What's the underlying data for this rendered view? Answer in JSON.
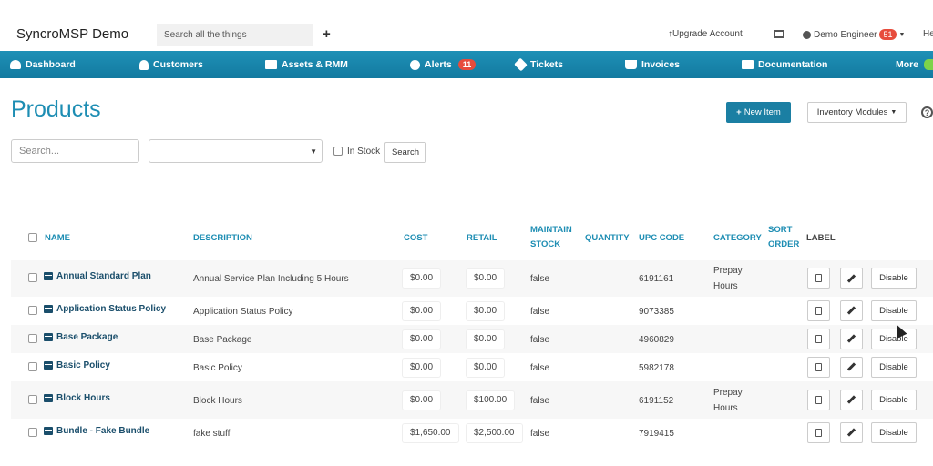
{
  "app": {
    "brand": "SyncroMSP Demo",
    "search_placeholder": "Search all the things",
    "plus": "+",
    "upgrade": "Upgrade Account",
    "user_name": "Demo Engineer",
    "user_badge": "51",
    "help_cut": "He"
  },
  "nav": [
    {
      "label": "Dashboard",
      "icon": "gauge-icon"
    },
    {
      "label": "Customers",
      "icon": "user-icon"
    },
    {
      "label": "Assets & RMM",
      "icon": "monitor-icon"
    },
    {
      "label": "Alerts",
      "icon": "alert-icon",
      "badge": "11"
    },
    {
      "label": "Tickets",
      "icon": "tag-icon"
    },
    {
      "label": "Invoices",
      "icon": "cart-icon"
    },
    {
      "label": "Documentation",
      "icon": "book-icon"
    },
    {
      "label": "More",
      "icon": "bell-icon"
    }
  ],
  "header": {
    "title": "Products",
    "new_item": "New Item",
    "inventory_modules": "Inventory Modules"
  },
  "filters": {
    "search_placeholder": "Search...",
    "in_stock_label": "In Stock",
    "search_button": "Search"
  },
  "table": {
    "columns": {
      "name": "NAME",
      "description": "DESCRIPTION",
      "cost": "COST",
      "retail": "RETAIL",
      "maintain_1": "MAINTAIN",
      "maintain_2": "STOCK",
      "quantity": "QUANTITY",
      "upc": "UPC CODE",
      "category": "CATEGORY",
      "sort_1": "SORT",
      "sort_2": "ORDER",
      "label": "LABEL"
    },
    "disable_label": "Disable",
    "rows": [
      {
        "name": "Annual Standard Plan",
        "description": "Annual Service Plan Including 5 Hours",
        "cost": "$0.00",
        "retail": "$0.00",
        "maintain_stock": "false",
        "upc": "6191161",
        "category_1": "Prepay",
        "category_2": "Hours"
      },
      {
        "name": "Application Status Policy",
        "description": "Application Status Policy",
        "cost": "$0.00",
        "retail": "$0.00",
        "maintain_stock": "false",
        "upc": "9073385",
        "category_1": "",
        "category_2": ""
      },
      {
        "name": "Base Package",
        "description": "Base Package",
        "cost": "$0.00",
        "retail": "$0.00",
        "maintain_stock": "false",
        "upc": "4960829",
        "category_1": "",
        "category_2": ""
      },
      {
        "name": "Basic Policy",
        "description": "Basic Policy",
        "cost": "$0.00",
        "retail": "$0.00",
        "maintain_stock": "false",
        "upc": "5982178",
        "category_1": "",
        "category_2": ""
      },
      {
        "name": "Block Hours",
        "description": "Block Hours",
        "cost": "$0.00",
        "retail": "$100.00",
        "maintain_stock": "false",
        "upc": "6191152",
        "category_1": "Prepay",
        "category_2": "Hours"
      },
      {
        "name": "Bundle - Fake Bundle",
        "description": "fake stuff",
        "cost": "$1,650.00",
        "retail": "$2,500.00",
        "maintain_stock": "false",
        "upc": "7919415",
        "category_1": "",
        "category_2": ""
      }
    ]
  }
}
